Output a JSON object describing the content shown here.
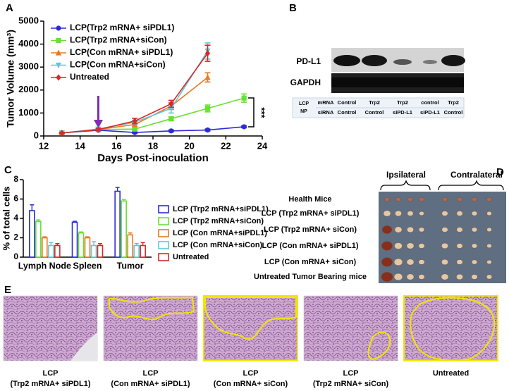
{
  "panel_labels": [
    "A",
    "B",
    "C",
    "D",
    "E"
  ],
  "chart_data": [
    {
      "type": "line",
      "xlabel": "Days Post-inoculation",
      "ylabel": "Tumor Volume (mm³)",
      "annotation": "***",
      "x": [
        13,
        15,
        17,
        19,
        21,
        23
      ],
      "xlim": [
        12,
        24
      ],
      "xticks": [
        12,
        14,
        16,
        18,
        20,
        22,
        24
      ],
      "ylim": [
        0,
        5000
      ],
      "yticks": [
        0,
        1000,
        2000,
        3000,
        4000,
        5000
      ],
      "series": [
        {
          "name": "LCP(Trp2 mRNA+ siPDL1)",
          "color": "#2b2bd9",
          "marker": "circle",
          "values": [
            130,
            250,
            150,
            220,
            260,
            400
          ],
          "errors": [
            20,
            30,
            30,
            40,
            40,
            40
          ]
        },
        {
          "name": "LCP(Trp2 mRNA+siCon)",
          "color": "#66e033",
          "marker": "square",
          "values": [
            130,
            280,
            300,
            750,
            1200,
            1650
          ],
          "errors": [
            20,
            40,
            50,
            80,
            150,
            180
          ]
        },
        {
          "name": "LCP(Con mRNA+ siPDL1)",
          "color": "#e87a1e",
          "marker": "triangle",
          "values": [
            130,
            280,
            500,
            1300,
            2550,
            null
          ],
          "errors": [
            20,
            40,
            80,
            150,
            200,
            null
          ]
        },
        {
          "name": "LCP(Con mRNA+siCon)",
          "color": "#5fc8d8",
          "marker": "triangle-down",
          "values": [
            130,
            300,
            600,
            1200,
            3700,
            null
          ],
          "errors": [
            20,
            40,
            80,
            200,
            350,
            null
          ]
        },
        {
          "name": "Untreated",
          "color": "#d42a2a",
          "marker": "diamond",
          "values": [
            130,
            280,
            650,
            1400,
            3600,
            null
          ],
          "errors": [
            20,
            50,
            120,
            150,
            350,
            null
          ]
        }
      ]
    },
    {
      "type": "bar",
      "ylabel": "% of total cells",
      "categories": [
        "Lymph Node",
        "Spleen",
        "Tumor"
      ],
      "ylim": [
        0,
        8
      ],
      "yticks": [
        0,
        2,
        4,
        6,
        8
      ],
      "series": [
        {
          "name": "LCP (Trp2 mRNA+siPDL1)",
          "color": "#2b2bd9",
          "values": [
            4.8,
            3.6,
            6.8
          ],
          "errors": [
            0.6,
            0.1,
            0.4
          ]
        },
        {
          "name": "LCP (Trp2 mRNA+siCon)",
          "color": "#66e033",
          "values": [
            3.7,
            2.5,
            5.8
          ],
          "errors": [
            0.15,
            0.1,
            0.15
          ]
        },
        {
          "name": "LCP (Con mRNA+siPDL1)",
          "color": "#e87a1e",
          "values": [
            2.0,
            2.0,
            2.3
          ],
          "errors": [
            0.1,
            0.1,
            0.2
          ]
        },
        {
          "name": "LCP (Con mRNA+siCon)",
          "color": "#5fc8d8",
          "values": [
            1.2,
            1.2,
            1.2
          ],
          "errors": [
            0.3,
            0.4,
            0.2
          ]
        },
        {
          "name": "Untreated",
          "color": "#d42a2a",
          "values": [
            1.2,
            1.2,
            1.2
          ],
          "errors": [
            0.2,
            0.2,
            0.3
          ]
        }
      ]
    }
  ],
  "blot": {
    "bands": [
      "PD-L1",
      "GAPDH"
    ],
    "table": {
      "row_label": [
        "LCP",
        "NP"
      ],
      "rows": [
        [
          "mRNA",
          "Control",
          "Trp2",
          "Trp2",
          "control",
          "Trp2"
        ],
        [
          "siRNA",
          "Control",
          "Control",
          "siPD-L1",
          "siPD-L1",
          "Control"
        ]
      ]
    }
  },
  "photo": {
    "headings": [
      "Ipsilateral",
      "Contralateral"
    ],
    "rows": [
      "Health Mice",
      "LCP (Trp2 mRNA+ siPDL1)",
      "LCP (Trp2 mRNA+ siCon)",
      "LCP (Con mRNA+ siPDL1)",
      "LCP (Con mRNA+ siCon)",
      "Untreated Tumor Bearing mice"
    ]
  },
  "histology": {
    "captions": [
      [
        "LCP",
        "(Trp2 mRNA+ siPDL1)"
      ],
      [
        "LCP",
        "(Con mRNA+ siPDL1)"
      ],
      [
        "LCP",
        "(Con mRNA+ siCon)"
      ],
      [
        "LCP",
        "(Trp2 mRNA+ siCon)"
      ],
      [
        "Untreated"
      ]
    ]
  }
}
